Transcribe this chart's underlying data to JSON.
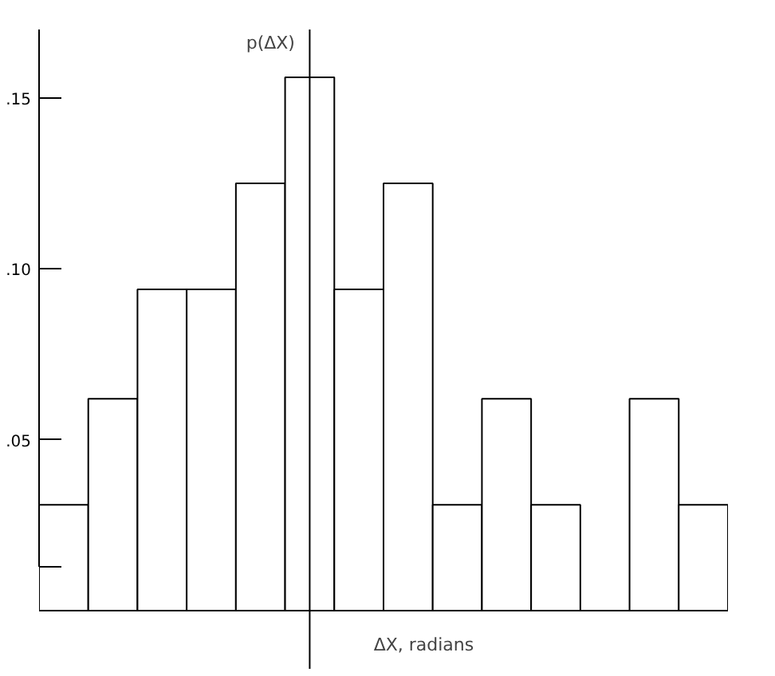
{
  "chart_data": {
    "type": "bar",
    "xlabel": "ΔX, radians",
    "ylabel": "p(ΔX)",
    "categories": [
      null,
      null,
      null,
      null,
      null,
      null,
      null,
      null,
      null,
      null,
      null,
      null,
      null,
      null
    ],
    "values": [
      0.031,
      0.062,
      0.094,
      0.094,
      0.125,
      0.156,
      0.094,
      0.125,
      0.031,
      0.062,
      0.031,
      0,
      0.062,
      0.031
    ],
    "color": "#ffffff",
    "ylim": [
      -0.017,
      0.17
    ],
    "yticks": [
      {
        "value": 0.013,
        "label": null
      },
      {
        "value": 0.05,
        "label": ".05"
      },
      {
        "value": 0.1,
        "label": ".10"
      },
      {
        "value": 0.15,
        "label": ".15"
      }
    ],
    "grid": false,
    "tick_labels": "y"
  }
}
